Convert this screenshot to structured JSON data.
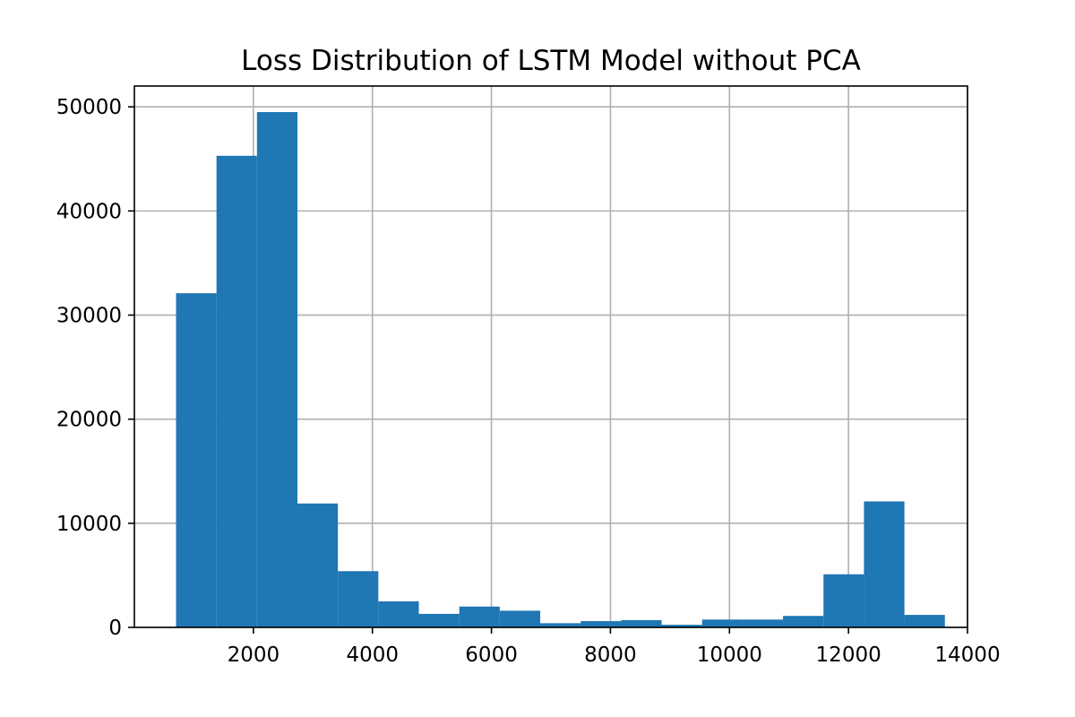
{
  "chart_data": {
    "type": "bar",
    "histogram": true,
    "title": "Loss Distribution of LSTM Model without PCA",
    "xlabel": "",
    "ylabel": "",
    "xlim": [
      0,
      14000
    ],
    "ylim": [
      0,
      52000
    ],
    "grid": true,
    "bar_color": "#1f77b4",
    "x_ticks": [
      2000,
      4000,
      6000,
      8000,
      10000,
      12000,
      14000
    ],
    "y_ticks": [
      0,
      10000,
      20000,
      30000,
      40000,
      50000
    ],
    "bins": [
      {
        "start": 700,
        "end": 1380,
        "count": 32100
      },
      {
        "start": 1380,
        "end": 2060,
        "count": 45300
      },
      {
        "start": 2060,
        "end": 2740,
        "count": 49500
      },
      {
        "start": 2740,
        "end": 3420,
        "count": 11900
      },
      {
        "start": 3420,
        "end": 4100,
        "count": 5400
      },
      {
        "start": 4100,
        "end": 4780,
        "count": 2500
      },
      {
        "start": 4780,
        "end": 5460,
        "count": 1300
      },
      {
        "start": 5460,
        "end": 6140,
        "count": 2000
      },
      {
        "start": 6140,
        "end": 6820,
        "count": 1600
      },
      {
        "start": 6820,
        "end": 7500,
        "count": 400
      },
      {
        "start": 7500,
        "end": 8180,
        "count": 600
      },
      {
        "start": 8180,
        "end": 8860,
        "count": 700
      },
      {
        "start": 8860,
        "end": 9540,
        "count": 250
      },
      {
        "start": 9540,
        "end": 10220,
        "count": 750
      },
      {
        "start": 10220,
        "end": 10900,
        "count": 750
      },
      {
        "start": 10900,
        "end": 11580,
        "count": 1100
      },
      {
        "start": 11580,
        "end": 12260,
        "count": 5100
      },
      {
        "start": 12260,
        "end": 12940,
        "count": 12100
      },
      {
        "start": 12940,
        "end": 13620,
        "count": 1200
      }
    ]
  }
}
